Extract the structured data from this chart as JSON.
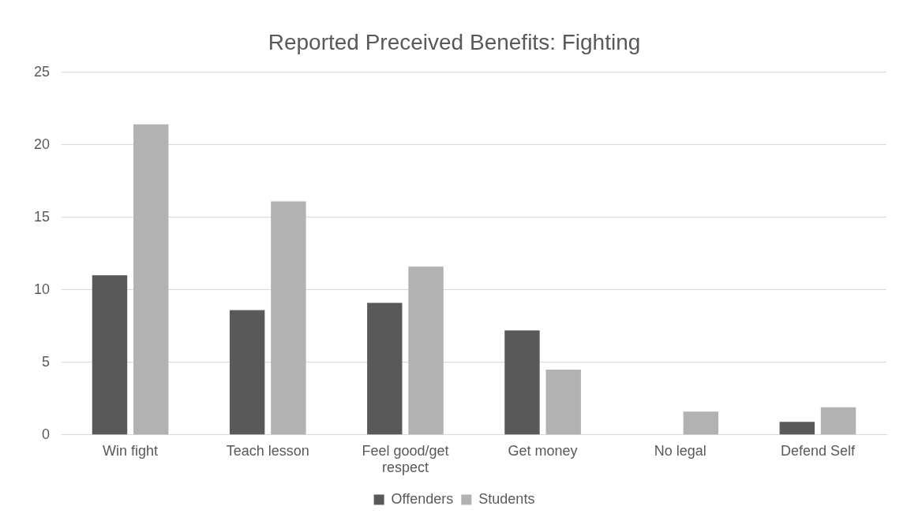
{
  "chart_data": {
    "type": "bar",
    "title": "Reported Preceived Benefits: Fighting",
    "categories": [
      "Win fight",
      "Teach lesson",
      "Feel good/get respect",
      "Get money",
      "No legal",
      "Defend Self"
    ],
    "series": [
      {
        "name": "Offenders",
        "color": "#595959",
        "values": [
          11,
          8.6,
          9.1,
          7.2,
          0,
          0.9
        ]
      },
      {
        "name": "Students",
        "color": "#b2b2b2",
        "values": [
          21.4,
          16.1,
          11.6,
          4.5,
          1.6,
          1.9
        ]
      }
    ],
    "ylim": [
      0,
      25
    ],
    "yticks": [
      0,
      5,
      10,
      15,
      20,
      25
    ],
    "grid": "y",
    "legend": "bottom"
  }
}
